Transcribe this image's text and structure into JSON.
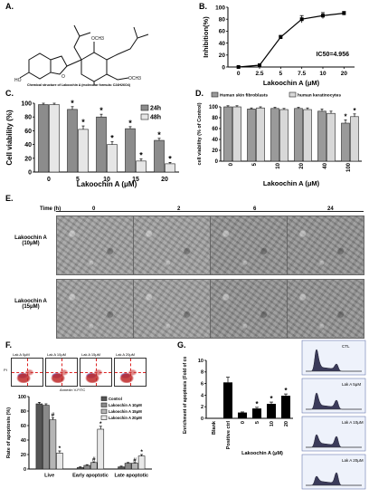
{
  "panelA": {
    "letter": "A.",
    "caption": "Chemical structure of Lakoochin A (molecular formula: C24H26O4)"
  },
  "chart_data": [
    {
      "id": "B",
      "type": "line",
      "letter": "B.",
      "xlabel": "Lakoochin A (μM)",
      "ylabel": "Inhibition(%)",
      "x_ticks": [
        "0",
        "2.5",
        "5",
        "7.5",
        "10",
        "20"
      ],
      "y_ticks": [
        "0",
        "20",
        "40",
        "60",
        "80",
        "100"
      ],
      "ylim": [
        0,
        100
      ],
      "values": [
        0,
        3,
        50,
        80,
        86,
        90
      ],
      "errors": [
        1,
        2,
        3,
        6,
        5,
        3
      ],
      "annotation": "IC50=4.956",
      "grid": false
    },
    {
      "id": "C",
      "type": "bar",
      "letter": "C.",
      "xlabel": "Lakoochin A (μM)",
      "ylabel": "Cell viability (%)",
      "categories": [
        "0",
        "5",
        "10",
        "15",
        "20"
      ],
      "ylim": [
        0,
        100
      ],
      "y_ticks": [
        "0",
        "20",
        "40",
        "60",
        "80",
        "100"
      ],
      "series": [
        {
          "name": "24h",
          "color": "#8c8c8c",
          "values": [
            98,
            91,
            80,
            63,
            46
          ],
          "errors": [
            2,
            4,
            4,
            3,
            3
          ]
        },
        {
          "name": "48h",
          "color": "#e6e6e6",
          "values": [
            98,
            62,
            40,
            16,
            12
          ],
          "errors": [
            2,
            5,
            4,
            3,
            2
          ]
        }
      ],
      "star_label": "*",
      "legend": "top-right",
      "grid": false
    },
    {
      "id": "D",
      "type": "bar",
      "letter": "D.",
      "xlabel": "Lakoochin A (μM)",
      "ylabel": "cell viability (% of Control)",
      "categories": [
        "0",
        "5",
        "10",
        "20",
        "40",
        "100"
      ],
      "ylim": [
        0,
        100
      ],
      "y_ticks": [
        "0",
        "20",
        "40",
        "60",
        "80",
        "100"
      ],
      "series": [
        {
          "name": "Human skin fibroblasts",
          "color": "#9a9a9a",
          "values": [
            100,
            96,
            97,
            97,
            92,
            70
          ],
          "errors": [
            2,
            2,
            2,
            2,
            4,
            6
          ]
        },
        {
          "name": "human keratinocytes",
          "color": "#d8d8d8",
          "values": [
            100,
            98,
            95,
            95,
            88,
            82
          ],
          "errors": [
            2,
            2,
            2,
            3,
            4,
            5
          ]
        }
      ],
      "star_label": "*",
      "legend": "top",
      "grid": false
    },
    {
      "id": "F",
      "type": "bar",
      "letter": "F.",
      "xlabel": "",
      "ylabel": "Rate of apoptosis (%)",
      "categories": [
        "Live",
        "Early apoptotic",
        "Late apoptotic"
      ],
      "ylim": [
        0,
        100
      ],
      "y_ticks": [
        "0",
        "20",
        "40",
        "60",
        "80",
        "100"
      ],
      "series": [
        {
          "name": "Control",
          "color": "#555555",
          "values": [
            90,
            2,
            3
          ],
          "errors": [
            2,
            1,
            1
          ]
        },
        {
          "name": "Lakoochin A 10μM",
          "color": "#8a8a8a",
          "values": [
            88,
            5,
            8
          ],
          "errors": [
            2,
            1,
            1
          ]
        },
        {
          "name": "Lakoochin A 15μM",
          "color": "#b5b5b5",
          "values": [
            68,
            9,
            8
          ],
          "errors": [
            3,
            1,
            1
          ]
        },
        {
          "name": "Lakoochin A 20μM",
          "color": "#e8e8e8",
          "values": [
            22,
            55,
            18
          ],
          "errors": [
            3,
            4,
            2
          ]
        }
      ],
      "mark_hash": "#",
      "mark_star": "*",
      "legend": "top-right",
      "grid": false
    },
    {
      "id": "G",
      "type": "bar",
      "letter": "G.",
      "xlabel": "Lakoochin A (μM)",
      "ylabel": "Enrichment of apoptosis (Fold of control)",
      "categories": [
        "Blank",
        "Positive ctrl",
        "0",
        "5",
        "10",
        "20"
      ],
      "ylim": [
        0,
        10
      ],
      "y_ticks": [
        "0",
        "2",
        "4",
        "6",
        "8",
        "10"
      ],
      "values": [
        0,
        6.2,
        1.0,
        1.7,
        2.5,
        3.9
      ],
      "errors": [
        0,
        0.9,
        0.1,
        0.2,
        0.3,
        0.3
      ],
      "star_label": "*",
      "grid": false
    }
  ],
  "panelE": {
    "letter": "E.",
    "time_label": "Time (h)",
    "times": [
      "0",
      "2",
      "6",
      "24"
    ],
    "rows": [
      {
        "label_line1": "Lakoochin A",
        "label_line2": "(10μM)"
      },
      {
        "label_line1": "Lakoochin A",
        "label_line2": "(15μM)"
      }
    ]
  },
  "panelF_flow": {
    "axis_y": "PI",
    "axis_x": "Annexin V-FITC",
    "titles": [
      "Lak A 0μM",
      "Lak A 10μM",
      "Lak A 15μM",
      "Lak A 20μM"
    ]
  },
  "panelG_hist": {
    "labels": [
      "CTL",
      "Lak A  5μM",
      "Lak A 10μM",
      "Lak A 20μM"
    ]
  }
}
